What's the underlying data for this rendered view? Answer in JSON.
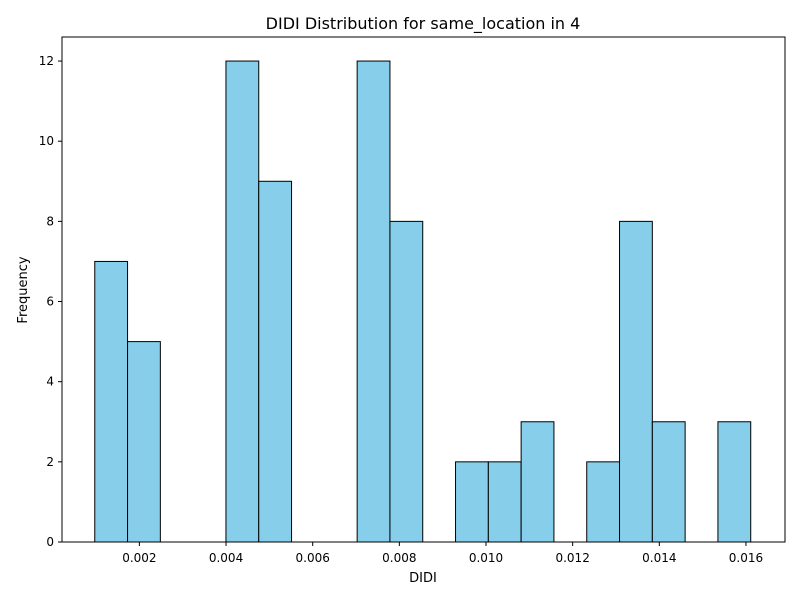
{
  "chart_data": {
    "type": "bar",
    "title": "DIDI Distribution for same_location in 4",
    "xlabel": "DIDI",
    "ylabel": "Frequency",
    "x_bin_start": 0.00097,
    "x_bin_width": 0.000757,
    "bins": 20,
    "values": [
      7,
      5,
      0,
      0,
      12,
      9,
      0,
      0,
      12,
      8,
      0,
      2,
      2,
      3,
      0,
      2,
      8,
      3,
      0,
      3
    ],
    "xlim": [
      0.000214,
      0.016901
    ],
    "ylim": [
      0,
      12.6
    ],
    "xticks": [
      0.002,
      0.004,
      0.006,
      0.008,
      0.01,
      0.012,
      0.014,
      0.016
    ],
    "xtick_labels": [
      "0.002",
      "0.004",
      "0.006",
      "0.008",
      "0.010",
      "0.012",
      "0.014",
      "0.016"
    ],
    "yticks": [
      0,
      2,
      4,
      6,
      8,
      10,
      12
    ],
    "ytick_labels": [
      "0",
      "2",
      "4",
      "6",
      "8",
      "10",
      "12"
    ],
    "bar_color": "#87ceeb",
    "edge_color": "#000000",
    "grid": false
  }
}
